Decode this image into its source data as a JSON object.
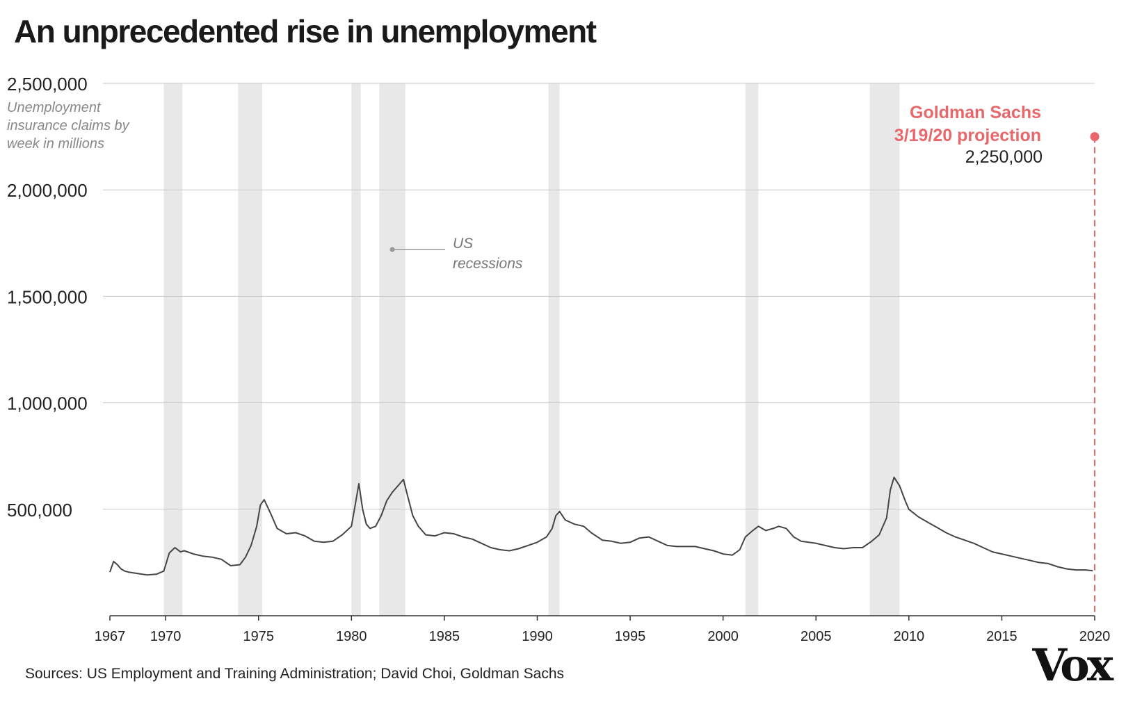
{
  "chart_data": {
    "type": "line",
    "title": "An unprecedented rise in unemployment",
    "ylabel": "Unemployment insurance claims by week in millions",
    "source": "Sources: US Employment and Training Administration; David Choi, Goldman Sachs",
    "xlim": [
      1967,
      2020
    ],
    "ylim": [
      0,
      2500000
    ],
    "y_ticks": [
      500000,
      1000000,
      1500000,
      2000000,
      2500000
    ],
    "y_tick_labels": [
      "500,000",
      "1,000,000",
      "1,500,000",
      "2,000,000",
      "2,500,000"
    ],
    "x_ticks": [
      1967,
      1970,
      1975,
      1980,
      1985,
      1990,
      1995,
      2000,
      2005,
      2010,
      2015,
      2020
    ],
    "x_tick_labels": [
      "1967",
      "1970",
      "1975",
      "1980",
      "1985",
      "1990",
      "1995",
      "2000",
      "2005",
      "2010",
      "2015",
      "2020"
    ],
    "grid": true,
    "recessions": [
      [
        1969.9,
        1970.9
      ],
      [
        1973.9,
        1975.2
      ],
      [
        1980.0,
        1980.5
      ],
      [
        1981.5,
        1982.9
      ],
      [
        1990.6,
        1991.2
      ],
      [
        2001.2,
        2001.9
      ],
      [
        2007.9,
        2009.5
      ]
    ],
    "recession_label": "US recessions",
    "series": [
      {
        "color": "#444444",
        "x": [
          1967.0,
          1967.2,
          1967.4,
          1967.6,
          1967.8,
          1968.0,
          1968.5,
          1969.0,
          1969.5,
          1969.9,
          1970.2,
          1970.5,
          1970.8,
          1971.0,
          1971.5,
          1972.0,
          1972.5,
          1973.0,
          1973.5,
          1974.0,
          1974.3,
          1974.6,
          1974.9,
          1975.1,
          1975.3,
          1975.6,
          1976.0,
          1976.5,
          1977.0,
          1977.5,
          1978.0,
          1978.5,
          1979.0,
          1979.5,
          1980.0,
          1980.2,
          1980.4,
          1980.6,
          1980.8,
          1981.0,
          1981.3,
          1981.6,
          1981.9,
          1982.2,
          1982.5,
          1982.8,
          1983.0,
          1983.3,
          1983.6,
          1984.0,
          1984.5,
          1985.0,
          1985.5,
          1986.0,
          1986.5,
          1987.0,
          1987.5,
          1988.0,
          1988.5,
          1989.0,
          1989.5,
          1990.0,
          1990.5,
          1990.8,
          1991.0,
          1991.2,
          1991.5,
          1992.0,
          1992.5,
          1992.9,
          1993.5,
          1994.0,
          1994.5,
          1995.0,
          1995.5,
          1996.0,
          1996.5,
          1997.0,
          1997.5,
          1998.0,
          1998.5,
          1999.0,
          1999.5,
          2000.0,
          2000.5,
          2000.9,
          2001.2,
          2001.6,
          2001.9,
          2002.3,
          2002.7,
          2003.0,
          2003.4,
          2003.8,
          2004.2,
          2004.6,
          2005.0,
          2005.5,
          2006.0,
          2006.5,
          2007.0,
          2007.5,
          2008.0,
          2008.4,
          2008.8,
          2009.0,
          2009.2,
          2009.5,
          2009.8,
          2010.0,
          2010.5,
          2011.0,
          2011.5,
          2012.0,
          2012.5,
          2013.0,
          2013.5,
          2014.0,
          2014.5,
          2015.0,
          2015.5,
          2016.0,
          2016.5,
          2017.0,
          2017.5,
          2018.0,
          2018.5,
          2019.0,
          2019.5,
          2019.9
        ],
        "y": [
          205000,
          255000,
          240000,
          220000,
          210000,
          205000,
          198000,
          192000,
          195000,
          210000,
          295000,
          320000,
          300000,
          305000,
          290000,
          280000,
          275000,
          265000,
          235000,
          240000,
          275000,
          330000,
          420000,
          520000,
          545000,
          490000,
          410000,
          385000,
          390000,
          375000,
          350000,
          345000,
          350000,
          380000,
          420000,
          520000,
          620000,
          500000,
          430000,
          410000,
          420000,
          470000,
          540000,
          580000,
          610000,
          640000,
          570000,
          470000,
          420000,
          380000,
          375000,
          390000,
          385000,
          370000,
          360000,
          340000,
          320000,
          310000,
          305000,
          315000,
          330000,
          345000,
          370000,
          410000,
          470000,
          490000,
          450000,
          430000,
          420000,
          390000,
          355000,
          350000,
          340000,
          345000,
          365000,
          370000,
          350000,
          330000,
          325000,
          325000,
          325000,
          315000,
          305000,
          290000,
          285000,
          310000,
          370000,
          400000,
          420000,
          400000,
          410000,
          420000,
          410000,
          370000,
          350000,
          345000,
          340000,
          330000,
          320000,
          315000,
          320000,
          320000,
          350000,
          380000,
          460000,
          590000,
          650000,
          610000,
          540000,
          500000,
          465000,
          440000,
          415000,
          390000,
          370000,
          355000,
          340000,
          320000,
          300000,
          290000,
          280000,
          270000,
          260000,
          250000,
          245000,
          230000,
          220000,
          215000,
          215000,
          211000
        ]
      },
      {
        "name": "Goldman Sachs 3/19/20 projection",
        "color": "#e8676a",
        "x": [
          2020.0
        ],
        "y": [
          2250000
        ],
        "label": "2,250,000"
      }
    ],
    "annotation": {
      "title_line1": "Goldman Sachs",
      "title_line2": "3/19/20 projection",
      "value": "2,250,000"
    }
  },
  "branding": {
    "logo": "Vox"
  }
}
